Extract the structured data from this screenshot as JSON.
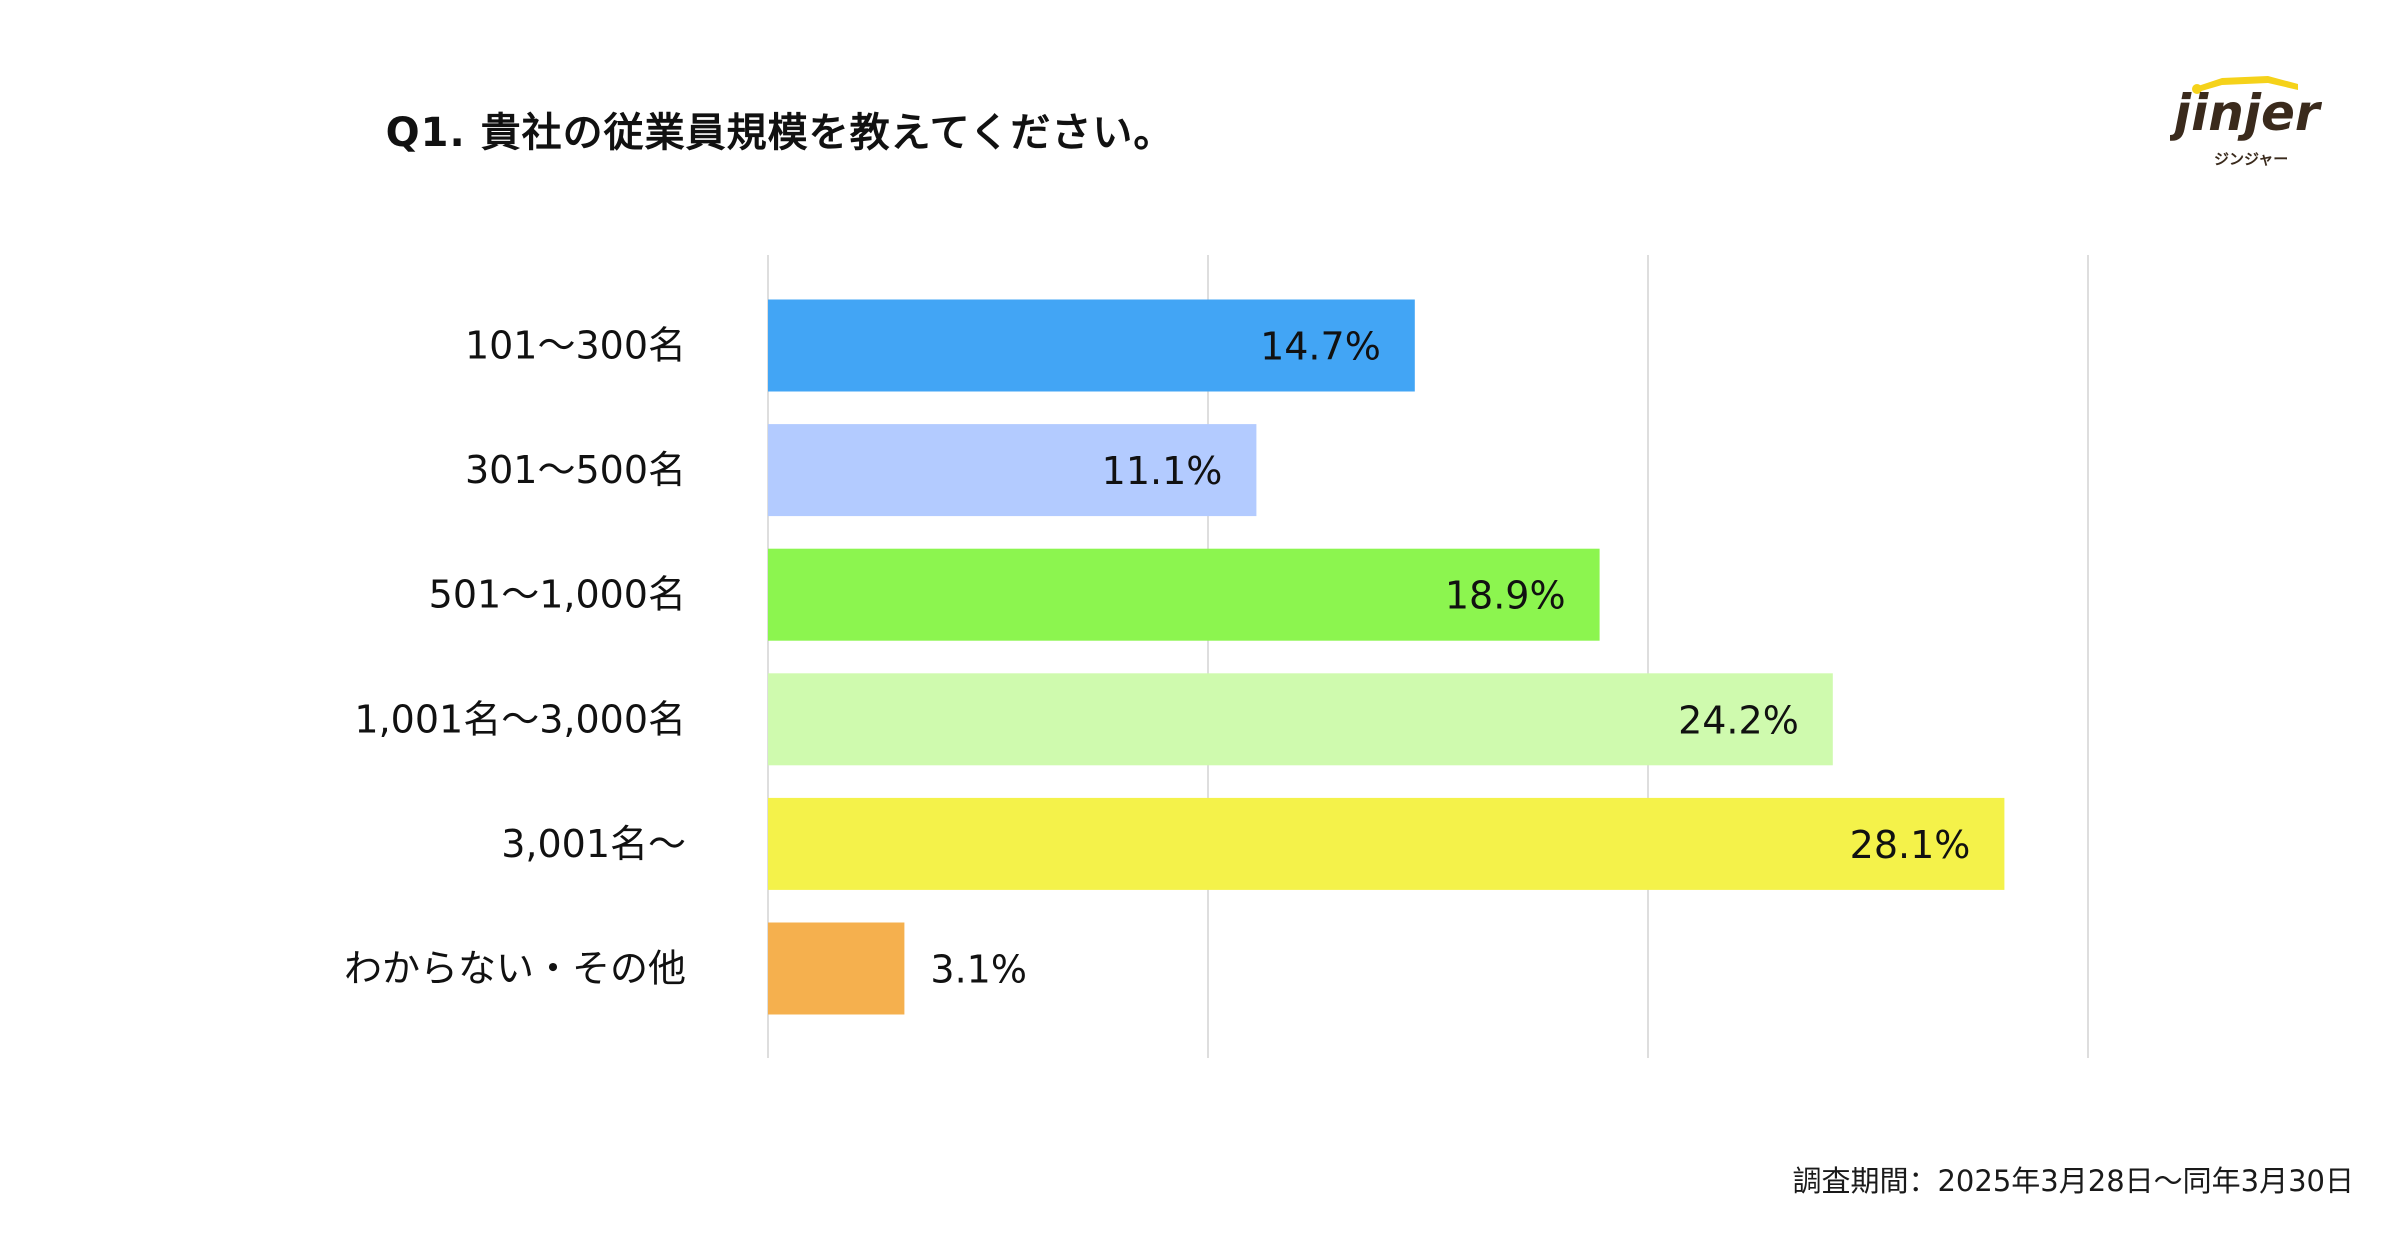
{
  "title": "Q1. 貴社の従業員規模を教えてください。",
  "logo": {
    "text": "jinjer",
    "subtext": "ジンジャー",
    "accent_color": "#f5d21a",
    "text_color": "#3a2a1c"
  },
  "footer": "調査期間：2025年3月28日〜同年3月30日",
  "chart_data": {
    "type": "bar",
    "orientation": "horizontal",
    "categories": [
      "101〜300名",
      "301〜500名",
      "501〜1,000名",
      "1,001名〜3,000名",
      "3,001名〜",
      "わからない・その他"
    ],
    "values": [
      14.7,
      11.1,
      18.9,
      24.2,
      28.1,
      3.1
    ],
    "value_labels": [
      "14.7%",
      "11.1%",
      "18.9%",
      "24.2%",
      "28.1%",
      "3.1%"
    ],
    "colors": [
      "#42a5f5",
      "#b3cbff",
      "#8cf54f",
      "#cffaae",
      "#f4f24a",
      "#f5b04e"
    ],
    "xlim": [
      0,
      30
    ],
    "grid": true,
    "gridline_values": [
      0,
      10,
      20,
      30
    ],
    "legend": "none"
  }
}
